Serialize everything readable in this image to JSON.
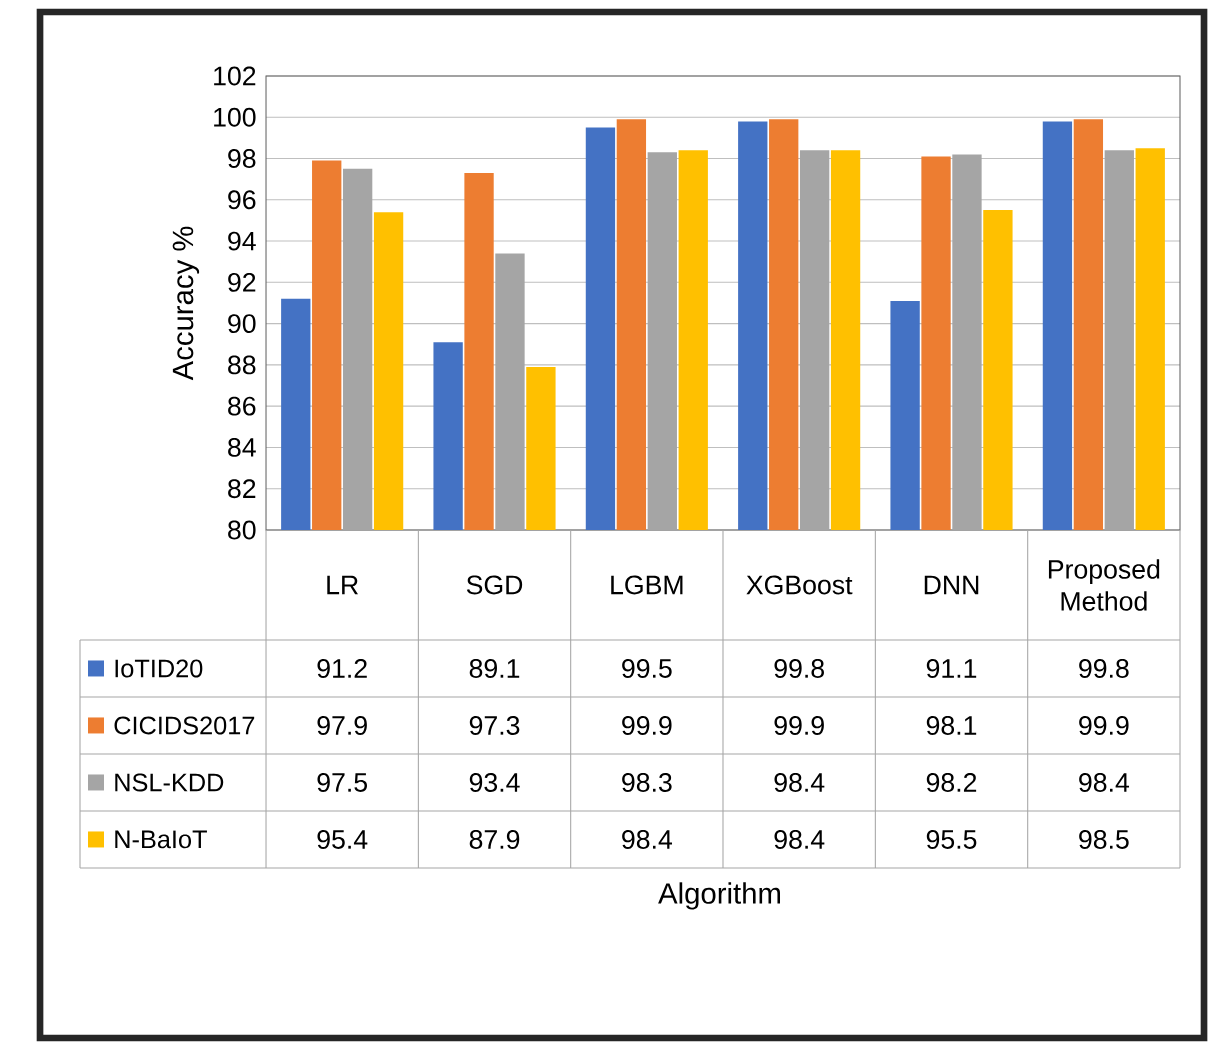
{
  "chart_data": {
    "type": "bar",
    "annotations": [
      "Algorithm"
    ],
    "ylabel": "Accuracy %",
    "categories": [
      "LR",
      "SGD",
      "LGBM",
      "XGBoost",
      "DNN",
      "Proposed Method"
    ],
    "series": [
      {
        "name": "IoTID20",
        "color": "#4472c4",
        "values": [
          91.2,
          89.1,
          99.5,
          99.8,
          91.1,
          99.8
        ]
      },
      {
        "name": "CICIDS2017",
        "color": "#ed7d31",
        "values": [
          97.9,
          97.3,
          99.9,
          99.9,
          98.1,
          99.9
        ]
      },
      {
        "name": "NSL-KDD",
        "color": "#a5a5a5",
        "values": [
          97.5,
          93.4,
          98.3,
          98.4,
          98.2,
          98.4
        ]
      },
      {
        "name": "N-BaIoT",
        "color": "#ffc000",
        "values": [
          95.4,
          87.9,
          98.4,
          98.4,
          95.5,
          98.5
        ]
      }
    ],
    "ylim": [
      80,
      102
    ],
    "yticks": [
      80,
      82,
      84,
      86,
      88,
      90,
      92,
      94,
      96,
      98,
      100,
      102
    ],
    "grid": "y",
    "legend": "bottom",
    "data_labels": true
  }
}
